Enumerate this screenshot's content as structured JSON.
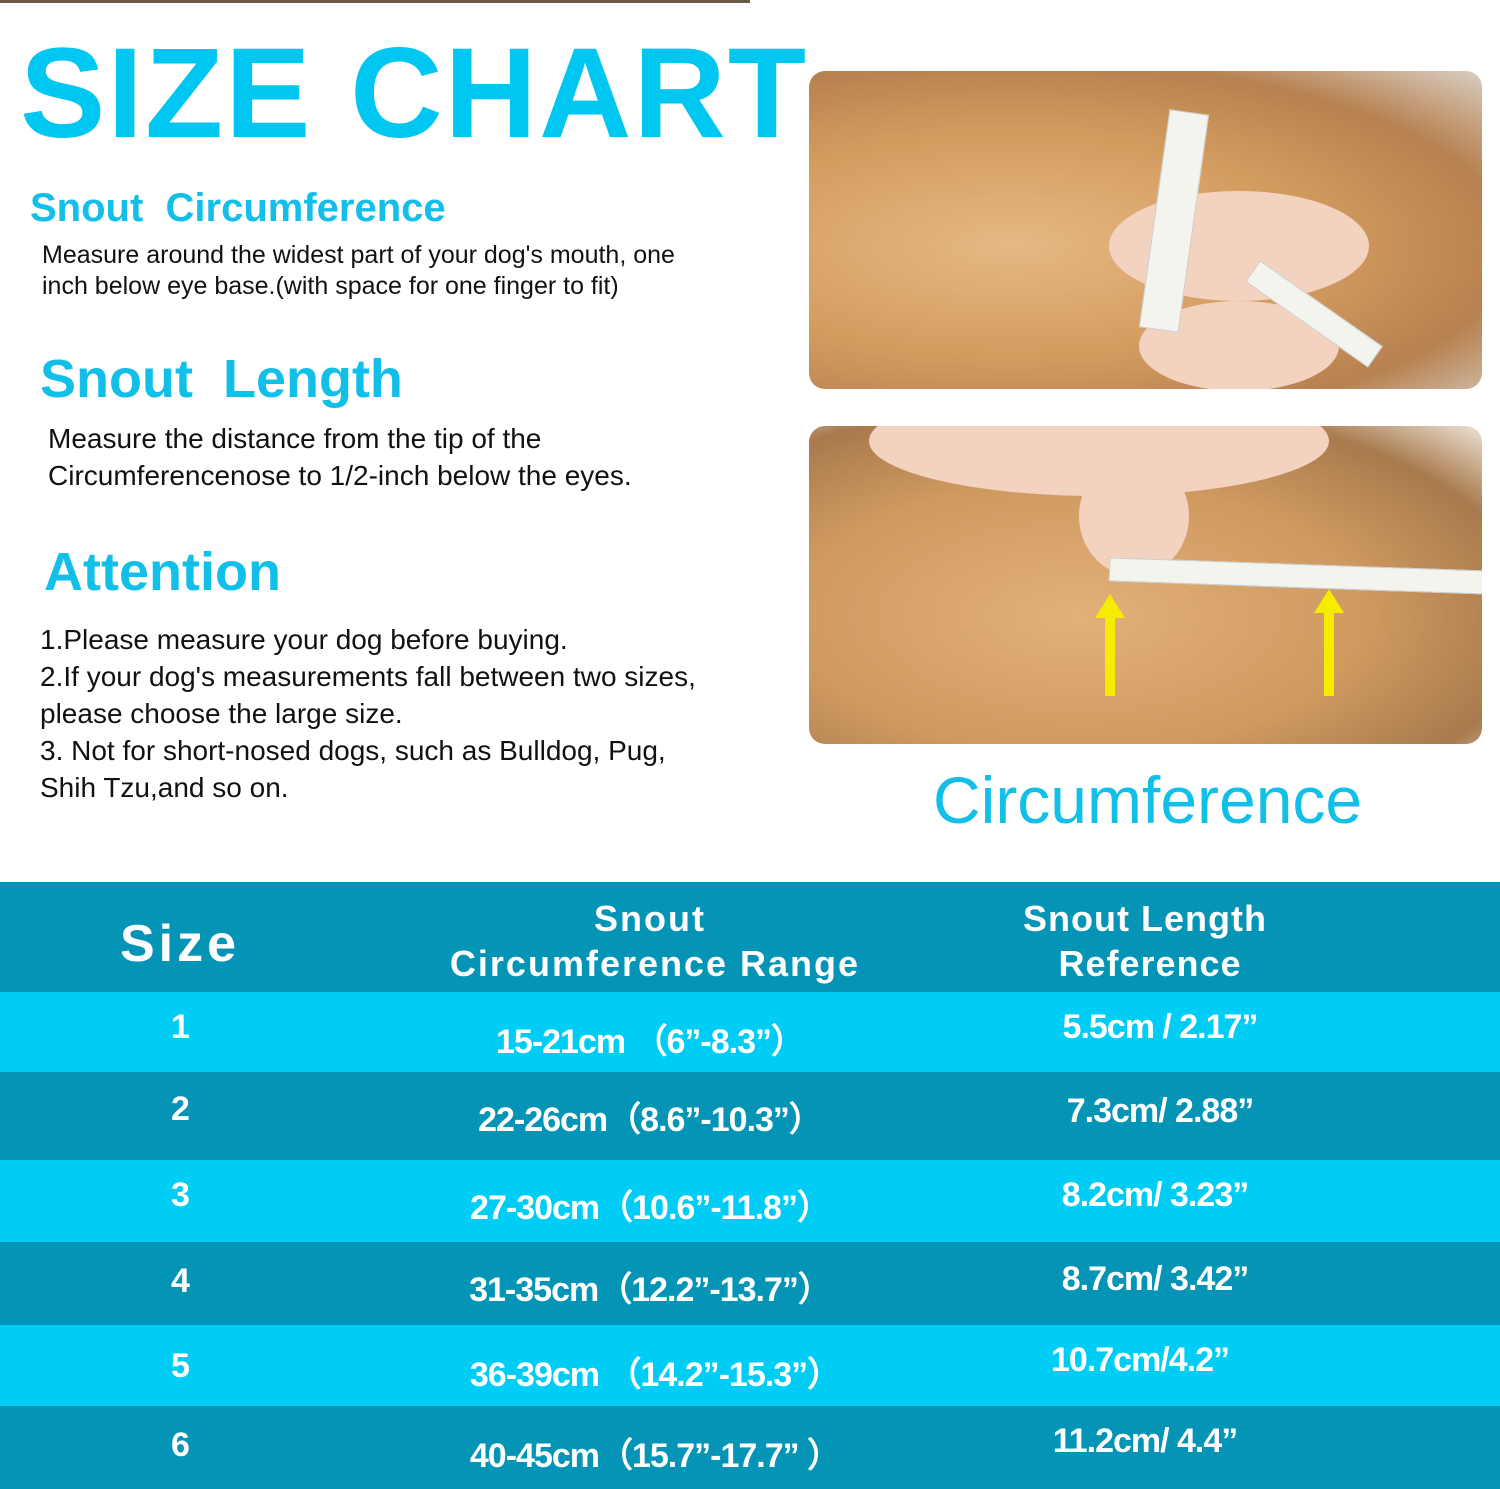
{
  "title": "SIZE CHART",
  "sections": {
    "circumference": {
      "heading": "Snout  Circumference",
      "text": "Measure around the widest part of your dog's mouth, one inch below eye base.(with space for one finger to fit)"
    },
    "length": {
      "heading": "Snout  Length",
      "text": "Measure the distance from the tip of the Circumferencenose to 1/2-inch below the eyes."
    },
    "attention": {
      "heading": "Attention",
      "items": [
        "1.Please measure your dog before buying.",
        "2.If your dog's measurements fall between two sizes, please choose the large size.",
        "3. Not for short-nosed dogs, such as Bulldog, Pug, Shih Tzu,and so on."
      ]
    }
  },
  "photo_caption": "Circumference",
  "colors": {
    "accent": "#00c6f2",
    "header_row": "#0494b6",
    "row_light": "#00cdf6",
    "row_dark": "#0494b6",
    "arrow": "#f5ec00"
  },
  "table": {
    "headers": {
      "size": "Size",
      "circ_line1": "Snout",
      "circ_line2": "Circumference Range",
      "len_line1": "Snout Length",
      "len_line2": "Reference"
    },
    "rows": [
      {
        "size": "1",
        "circ": "15-21cm （6”-8.3”）",
        "len": "5.5cm / 2.17”"
      },
      {
        "size": "2",
        "circ": "22-26cm（8.6”-10.3”）",
        "len": "7.3cm/ 2.88”"
      },
      {
        "size": "3",
        "circ": "27-30cm（10.6”-11.8”）",
        "len": "8.2cm/ 3.23”"
      },
      {
        "size": "4",
        "circ": "31-35cm（12.2”-13.7”）",
        "len": "8.7cm/ 3.42”"
      },
      {
        "size": "5",
        "circ": "36-39cm （14.2”-15.3”）",
        "len": "10.7cm/4.2”"
      },
      {
        "size": "6",
        "circ": "40-45cm（15.7”-17.7” ）",
        "len": "11.2cm/ 4.4”"
      }
    ]
  }
}
